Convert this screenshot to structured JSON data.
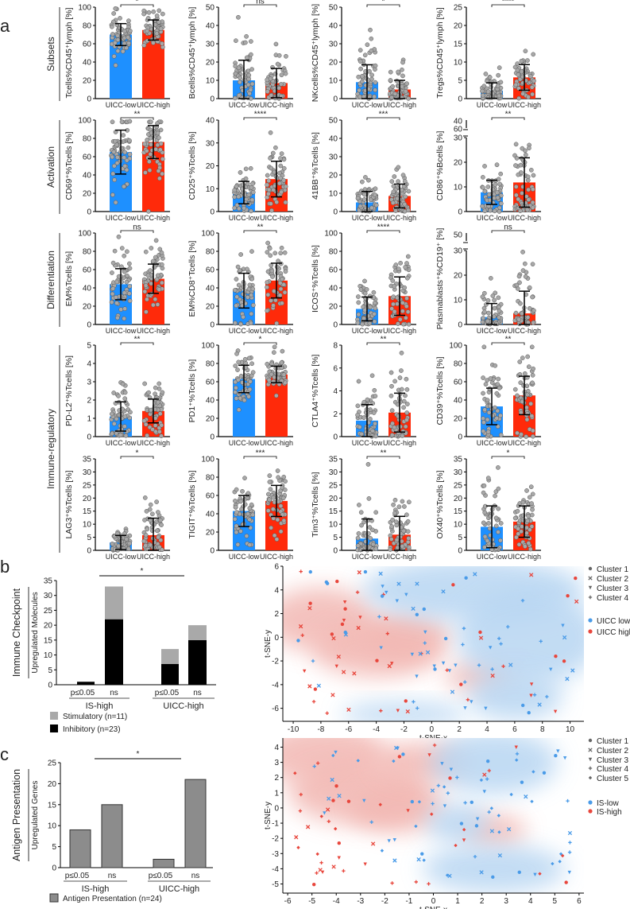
{
  "panel_labels": {
    "a": "a",
    "b": "b",
    "c": "c"
  },
  "colors": {
    "low": "#1e90ff",
    "high": "#ff2a0a",
    "dot": "#a8a8a8",
    "stim": "#a9a9a9",
    "inhib": "#000000",
    "antigen": "#8c8c8c",
    "tsne_blue": "#4a9be8",
    "tsne_red": "#e8463c"
  },
  "chart_data": [
    {
      "type": "bar",
      "id": "panel-a",
      "x_categories": [
        "UICC-low",
        "UICC-high"
      ],
      "row_labels": [
        "Subsets",
        "Activation",
        "Differentiation",
        "Immune-regulatory"
      ],
      "panels": [
        {
          "ylabel": "Tcells%CD45⁺lymph [%]",
          "ylim": [
            0,
            100
          ],
          "step": 20,
          "sig": "*",
          "low": {
            "mean": 70,
            "err_top": 82
          },
          "high": {
            "mean": 75,
            "err_top": 86
          }
        },
        {
          "ylabel": "Bcells%CD45⁺lymph [%]",
          "ylim": [
            0,
            50
          ],
          "step": 10,
          "sig": "ns",
          "low": {
            "mean": 10,
            "err_top": 21
          },
          "high": {
            "mean": 8.5,
            "err_top": 16.5
          }
        },
        {
          "ylabel": "NKcells%CD45⁺lymph [%]",
          "ylim": [
            0,
            50
          ],
          "step": 10,
          "sig": "*",
          "low": {
            "mean": 9,
            "err_top": 18.5
          },
          "high": {
            "mean": 5,
            "err_top": 10
          }
        },
        {
          "ylabel": "Tregs%CD45⁺lymph [%]",
          "ylim": [
            0,
            25
          ],
          "step": 5,
          "sig": "****",
          "low": {
            "mean": 2.2,
            "err_top": 4.3
          },
          "high": {
            "mean": 5.8,
            "err_top": 9.3
          }
        },
        {
          "ylabel": "CD69⁺%Tcells [%]",
          "ylim": [
            0,
            100
          ],
          "step": 20,
          "sig": "**",
          "low": {
            "mean": 65,
            "err_top": 89
          },
          "high": {
            "mean": 76,
            "err_top": 94
          }
        },
        {
          "ylabel": "CD25⁺%Tcells [%]",
          "ylim": [
            0,
            40
          ],
          "step": 10,
          "sig": "****",
          "low": {
            "mean": 8.3,
            "err_top": 13.2
          },
          "high": {
            "mean": 14.2,
            "err_top": 22
          }
        },
        {
          "ylabel": "41BB⁺%Tcells [%]",
          "ylim": [
            0,
            50
          ],
          "step": 10,
          "sig": "***",
          "low": {
            "mean": 5,
            "err_top": 11
          },
          "high": {
            "mean": 8.5,
            "err_top": 15
          }
        },
        {
          "ylabel": "CD86⁺%Bcells [%]",
          "ylim": [
            0,
            30
          ],
          "step": 10,
          "upper_ticks": [
            "40",
            "60"
          ],
          "sig": "**",
          "low": {
            "mean": 7.8,
            "err_top": 12.7
          },
          "high": {
            "mean": 11.8,
            "err_top": 21.8
          }
        },
        {
          "ylabel": "EM%Tcells [%]",
          "ylim": [
            0,
            100
          ],
          "step": 20,
          "sig": "ns",
          "low": {
            "mean": 44,
            "err_top": 61
          },
          "high": {
            "mean": 50,
            "err_top": 66
          }
        },
        {
          "ylabel": "EM%CD8⁺Tcells [%]",
          "ylim": [
            0,
            100
          ],
          "step": 20,
          "sig": "**",
          "low": {
            "mean": 37,
            "err_top": 56
          },
          "high": {
            "mean": 48,
            "err_top": 67
          }
        },
        {
          "ylabel": "ICOS⁺%Tcells [%]",
          "ylim": [
            0,
            100
          ],
          "step": 20,
          "sig": "****",
          "low": {
            "mean": 17,
            "err_top": 30
          },
          "high": {
            "mean": 31,
            "err_top": 52
          }
        },
        {
          "ylabel": "Plasmablasts⁺%CD19⁺ [%]",
          "ylim": [
            0,
            30
          ],
          "step": 10,
          "upper_ticks": [
            "50"
          ],
          "sig": "ns",
          "low": {
            "mean": 3,
            "err_top": 8.5
          },
          "high": {
            "mean": 4.5,
            "err_top": 13.5
          }
        },
        {
          "ylabel": "PD-L2⁺%Tcells [%]",
          "ylim": [
            0,
            5
          ],
          "step": 1,
          "sig": "**",
          "low": {
            "mean": 1.1,
            "err_top": 1.9
          },
          "high": {
            "mean": 1.4,
            "err_top": 2.05
          }
        },
        {
          "ylabel": "PD1⁺%Tcells [%]",
          "ylim": [
            0,
            100
          ],
          "step": 20,
          "sig": "*",
          "low": {
            "mean": 63,
            "err_top": 78
          },
          "high": {
            "mean": 68,
            "err_top": 77
          }
        },
        {
          "ylabel": "CTLA4⁺%Tcells [%]",
          "ylim": [
            0,
            8
          ],
          "step": 2,
          "sig": "**",
          "low": {
            "mean": 1.4,
            "err_top": 2.8
          },
          "high": {
            "mean": 2.1,
            "err_top": 3.8
          }
        },
        {
          "ylabel": "CD39⁺%Tcells [%]",
          "ylim": [
            0,
            100
          ],
          "step": 20,
          "sig": "**",
          "low": {
            "mean": 33,
            "err_top": 53
          },
          "high": {
            "mean": 45,
            "err_top": 66
          }
        },
        {
          "ylabel": "LAG3⁺%Tcells [%]",
          "ylim": [
            0,
            35
          ],
          "step": 5,
          "sig": "*",
          "low": {
            "mean": 3,
            "err_top": 5.7
          },
          "high": {
            "mean": 5.8,
            "err_top": 12.3
          }
        },
        {
          "ylabel": "TIGIT⁺%Tcells [%]",
          "ylim": [
            0,
            100
          ],
          "step": 20,
          "sig": "***",
          "low": {
            "mean": 43,
            "err_top": 60
          },
          "high": {
            "mean": 54,
            "err_top": 71
          }
        },
        {
          "ylabel": "Tim3⁺%Tcells [%]",
          "ylim": [
            0,
            35
          ],
          "step": 5,
          "sig": "**",
          "low": {
            "mean": 4.5,
            "err_top": 12
          },
          "high": {
            "mean": 6,
            "err_top": 13
          }
        },
        {
          "ylabel": "OX40⁺%Tcells [%]",
          "ylim": [
            0,
            35
          ],
          "step": 5,
          "sig": "*",
          "low": {
            "mean": 9,
            "err_top": 17
          },
          "high": {
            "mean": 11,
            "err_top": 17
          }
        }
      ]
    },
    {
      "type": "bar",
      "id": "panel-b-bars",
      "title": "Immune Checkpoint",
      "ylabel": "Upregulated Molecules",
      "ylim": [
        0,
        35
      ],
      "step": 5,
      "groups": [
        "IS-high",
        "UICC-high"
      ],
      "categories": [
        "p≤0.05",
        "ns",
        "p≤0.05",
        "ns"
      ],
      "series": [
        {
          "name": "Inhibitory (n=23)",
          "values": [
            1,
            22,
            7,
            15
          ]
        },
        {
          "name": "Stimulatory (n=11)",
          "values": [
            0,
            11,
            5,
            5
          ]
        }
      ],
      "sig": "*"
    },
    {
      "type": "scatter",
      "id": "panel-b-tsne",
      "xlabel": "t-SNE-x",
      "ylabel": "t-SNE-y",
      "xlim": [
        -10.75,
        11
      ],
      "ylim": [
        -7.1,
        6
      ],
      "xticks": [
        -10,
        -8,
        -6,
        -4,
        -2,
        0,
        2,
        4,
        6,
        8,
        10
      ],
      "yticks": [
        6,
        4,
        2,
        0,
        -2,
        -4,
        -6
      ],
      "cluster_legend": [
        "Cluster 1",
        "Cluster 2",
        "Cluster 3",
        "Cluster 4"
      ],
      "group_legend": [
        "UICC low",
        "UICC high"
      ]
    },
    {
      "type": "bar",
      "id": "panel-c-bars",
      "title": "Antigen Presentation",
      "ylabel": "Upregulated Genes",
      "ylim": [
        0,
        25
      ],
      "step": 5,
      "groups": [
        "IS-high",
        "UICC-high"
      ],
      "categories": [
        "p≤0.05",
        "ns",
        "p≤0.05",
        "ns"
      ],
      "series": [
        {
          "name": "Antigen Presentation (n=24)",
          "values": [
            9,
            15,
            2,
            21
          ]
        }
      ],
      "sig": "*"
    },
    {
      "type": "scatter",
      "id": "panel-c-tsne",
      "xlabel": "t-SNE-x",
      "ylabel": "t-SNE-y",
      "xlim": [
        -6.2,
        6.2
      ],
      "ylim": [
        -5.6,
        4.6
      ],
      "xticks": [
        -6,
        -5,
        -4,
        -3,
        -2,
        -1,
        0,
        1,
        2,
        3,
        4,
        5,
        6
      ],
      "yticks": [
        4,
        3,
        2,
        1,
        0,
        -1,
        -2,
        -3,
        -4,
        -5
      ],
      "cluster_legend": [
        "Cluster 1",
        "Cluster 2",
        "Cluster 3",
        "Cluster 4",
        "Cluster 5"
      ],
      "group_legend": [
        "IS-low",
        "IS-high"
      ]
    }
  ]
}
